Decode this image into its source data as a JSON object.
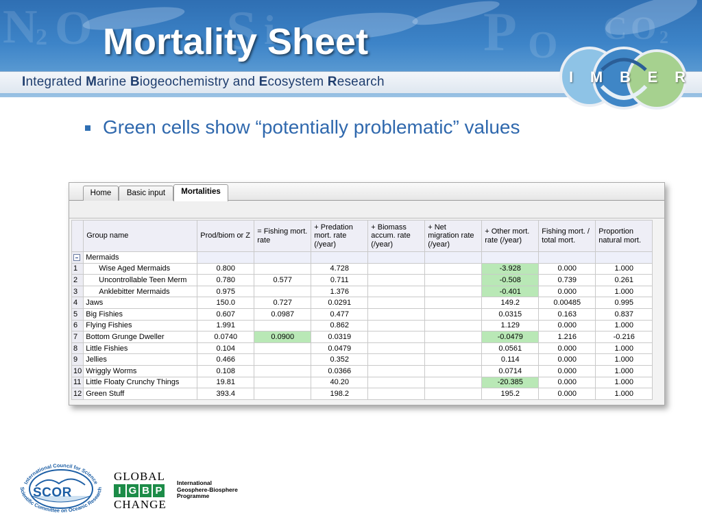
{
  "slide": {
    "title": "Mortality Sheet",
    "subtitle": {
      "parts": [
        {
          "text": "I",
          "bold": true
        },
        {
          "text": "ntegrated ",
          "bold": false
        },
        {
          "text": "M",
          "bold": true
        },
        {
          "text": "arine ",
          "bold": false
        },
        {
          "text": "B",
          "bold": true
        },
        {
          "text": "iogeochemistry and ",
          "bold": false
        },
        {
          "text": "E",
          "bold": true
        },
        {
          "text": "cosystem ",
          "bold": false
        },
        {
          "text": "R",
          "bold": true
        },
        {
          "text": "esearch",
          "bold": false
        }
      ]
    },
    "banner_background_text": [
      "N",
      "2",
      "O",
      "S",
      "i",
      "P",
      "O",
      "C",
      "O",
      "2"
    ],
    "imber_logo_letters": [
      "I",
      "M",
      "B",
      "E",
      "R"
    ],
    "bullet": "Green cells show “potentially problematic” values"
  },
  "app": {
    "tabs": [
      {
        "label": "Home",
        "active": false
      },
      {
        "label": "Basic input",
        "active": false
      },
      {
        "label": "Mortalities",
        "active": true
      }
    ],
    "columns": [
      "Group name",
      "Prod/biom or Z",
      "= Fishing mort. rate",
      "+ Predation mort. rate (/year)",
      "+ Biomass accum. rate (/year)",
      "+ Net migration rate (/year)",
      "+ Other mort. rate (/year)",
      "Fishing mort. / total mort.",
      "Proportion natural mort."
    ],
    "group_header": {
      "label": "Mermaids",
      "expander": "collapse-icon"
    },
    "rows": [
      {
        "num": "1",
        "name": "Wise Aged Mermaids",
        "indent": true,
        "values": [
          "0.800",
          "",
          "4.728",
          "",
          "",
          "-3.928",
          "0.000",
          "1.000"
        ],
        "highlight": [
          5
        ]
      },
      {
        "num": "2",
        "name": "Uncontrollable  Teen Merm",
        "indent": true,
        "values": [
          "0.780",
          "0.577",
          "0.711",
          "",
          "",
          "-0.508",
          "0.739",
          "0.261"
        ],
        "highlight": [
          5
        ]
      },
      {
        "num": "3",
        "name": "Anklebitter Mermaids",
        "indent": true,
        "values": [
          "0.975",
          "",
          "1.376",
          "",
          "",
          "-0.401",
          "0.000",
          "1.000"
        ],
        "highlight": [
          5
        ]
      },
      {
        "num": "4",
        "name": "Jaws",
        "indent": false,
        "values": [
          "150.0",
          "0.727",
          "0.0291",
          "",
          "",
          "149.2",
          "0.00485",
          "0.995"
        ],
        "highlight": []
      },
      {
        "num": "5",
        "name": "Big Fishies",
        "indent": false,
        "values": [
          "0.607",
          "0.0987",
          "0.477",
          "",
          "",
          "0.0315",
          "0.163",
          "0.837"
        ],
        "highlight": []
      },
      {
        "num": "6",
        "name": "Flying Fishies",
        "indent": false,
        "values": [
          "1.991",
          "",
          "0.862",
          "",
          "",
          "1.129",
          "0.000",
          "1.000"
        ],
        "highlight": []
      },
      {
        "num": "7",
        "name": "Bottom Grunge Dweller",
        "indent": false,
        "values": [
          "0.0740",
          "0.0900",
          "0.0319",
          "",
          "",
          "-0.0479",
          "1.216",
          "-0.216"
        ],
        "highlight": [
          1,
          5
        ]
      },
      {
        "num": "8",
        "name": "Little Fishies",
        "indent": false,
        "values": [
          "0.104",
          "",
          "0.0479",
          "",
          "",
          "0.0561",
          "0.000",
          "1.000"
        ],
        "highlight": []
      },
      {
        "num": "9",
        "name": "Jellies",
        "indent": false,
        "values": [
          "0.466",
          "",
          "0.352",
          "",
          "",
          "0.114",
          "0.000",
          "1.000"
        ],
        "highlight": []
      },
      {
        "num": "10",
        "name": "Wriggly Worms",
        "indent": false,
        "values": [
          "0.108",
          "",
          "0.0366",
          "",
          "",
          "0.0714",
          "0.000",
          "1.000"
        ],
        "highlight": []
      },
      {
        "num": "11",
        "name": "Little Floaty Crunchy Things",
        "indent": false,
        "values": [
          "19.81",
          "",
          "40.20",
          "",
          "",
          "-20.385",
          "0.000",
          "1.000"
        ],
        "highlight": [
          5
        ]
      },
      {
        "num": "12",
        "name": "Green Stuff",
        "indent": false,
        "values": [
          "393.4",
          "",
          "198.2",
          "",
          "",
          "195.2",
          "0.000",
          "1.000"
        ],
        "highlight": []
      }
    ],
    "colors": {
      "problematic_cell": "#b9e8b6",
      "header_bg": "#eeeef6"
    }
  },
  "footer": {
    "scor": {
      "abbr": "SCOR",
      "top_arc": "International Council for Science",
      "bottom_arc": "Scientific Committee on Oceanic Research"
    },
    "igbp": {
      "global": "GLOBAL",
      "letters": [
        "I",
        "G",
        "B",
        "P"
      ],
      "change": "CHANGE",
      "desc_lines": [
        "International",
        "Geosphere-Biosphere",
        "Programme"
      ]
    }
  }
}
